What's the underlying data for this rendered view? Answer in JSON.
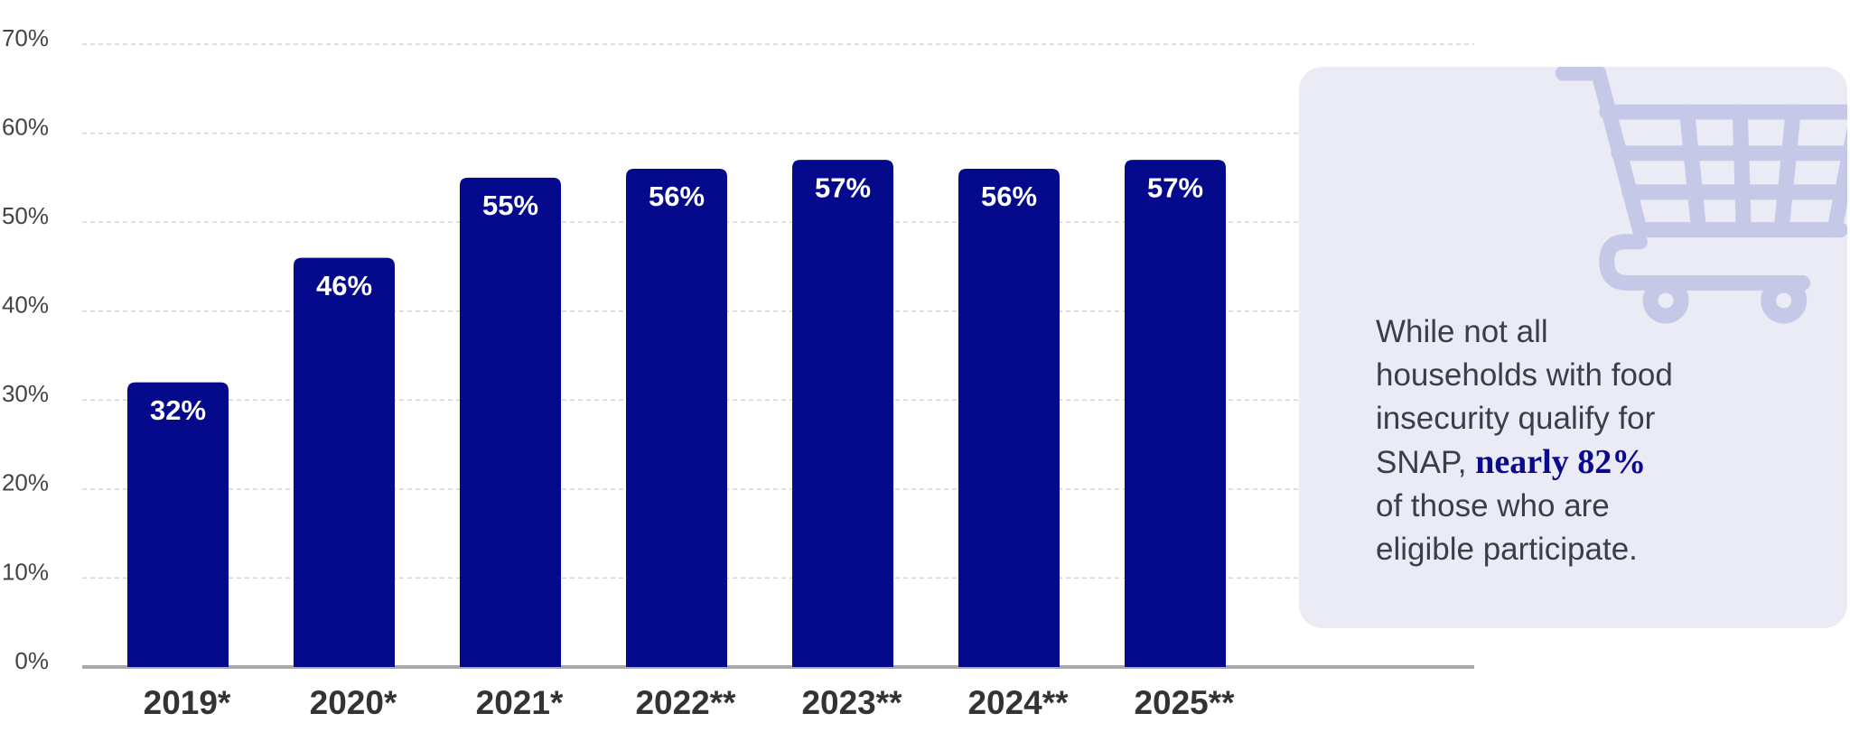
{
  "chart_data": {
    "type": "bar",
    "categories": [
      "2019*",
      "2020*",
      "2021*",
      "2022**",
      "2023**",
      "2024**",
      "2025**"
    ],
    "values": [
      32,
      46,
      55,
      56,
      57,
      56,
      57
    ],
    "value_labels": [
      "32%",
      "46%",
      "55%",
      "56%",
      "57%",
      "56%",
      "57%"
    ],
    "color": "#050a8c",
    "ylim": [
      0,
      70
    ],
    "yticks": [
      {
        "value": 0,
        "label": "0%"
      },
      {
        "value": 10,
        "label": "10%"
      },
      {
        "value": 20,
        "label": "20%"
      },
      {
        "value": 30,
        "label": "30%"
      },
      {
        "value": 40,
        "label": "40%"
      },
      {
        "value": 50,
        "label": "50%"
      },
      {
        "value": 60,
        "label": "60%"
      },
      {
        "value": 70,
        "label": "70%"
      }
    ],
    "grid": true,
    "annotation": {
      "before": "While not all households with food insecurity qualify for SNAP,",
      "highlight": "nearly 82%",
      "after": "of those who are eligible participate."
    }
  }
}
